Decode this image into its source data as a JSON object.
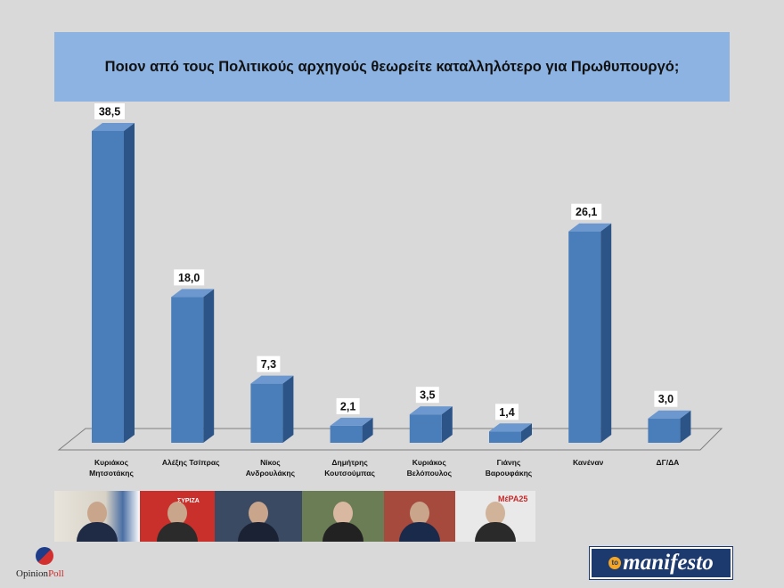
{
  "title": "Ποιον από τους Πολιτικούς αρχηγούς θεωρείτε καταλληλότερο για Πρωθυπουργό;",
  "colors": {
    "bar_front": "#4a7ebb",
    "bar_side": "#2c5487",
    "bar_top": "#6c98cf",
    "title_bg": "#8db3e2",
    "page_bg": "#d9d9d9"
  },
  "chart_data": {
    "type": "bar",
    "title": "Ποιον από τους Πολιτικούς αρχηγούς θεωρείτε καταλληλότερο για Πρωθυπουργό;",
    "categories": [
      [
        "Κυριάκος",
        "Μητσοτάκης"
      ],
      [
        "Αλέξης Τσίπρας"
      ],
      [
        "Νίκος",
        "Ανδρουλάκης"
      ],
      [
        "Δημήτρης",
        "Κουτσούμπας"
      ],
      [
        "Κυριάκος",
        "Βελόπουλος"
      ],
      [
        "Γιάνης",
        "Βαρουφάκης"
      ],
      [
        "Κανέναν"
      ],
      [
        "ΔΓ/ΔΑ"
      ]
    ],
    "values": [
      38.5,
      18.0,
      7.3,
      2.1,
      3.5,
      1.4,
      26.1,
      3.0
    ],
    "value_labels": [
      "38,5",
      "18,0",
      "7,3",
      "2,1",
      "3,5",
      "1,4",
      "26,1",
      "3,0"
    ],
    "ylim": [
      0,
      40
    ],
    "grid": false,
    "legend": "none",
    "xlabel": "",
    "ylabel": ""
  },
  "photos": [
    {
      "name": "mitsotakis-photo",
      "tag": ""
    },
    {
      "name": "tsipras-photo",
      "tag": "ΣΥΡΙΖΑ"
    },
    {
      "name": "androulakis-photo",
      "tag": ""
    },
    {
      "name": "koutsoumpas-photo",
      "tag": ""
    },
    {
      "name": "velopoulos-photo",
      "tag": ""
    },
    {
      "name": "varoufakis-photo",
      "tag": "ΜέΡΑ25"
    }
  ],
  "logos": {
    "opinion_poll_a": "Opinion",
    "opinion_poll_b": "Poll",
    "manifesto_to": "to",
    "manifesto": "manifesto"
  }
}
